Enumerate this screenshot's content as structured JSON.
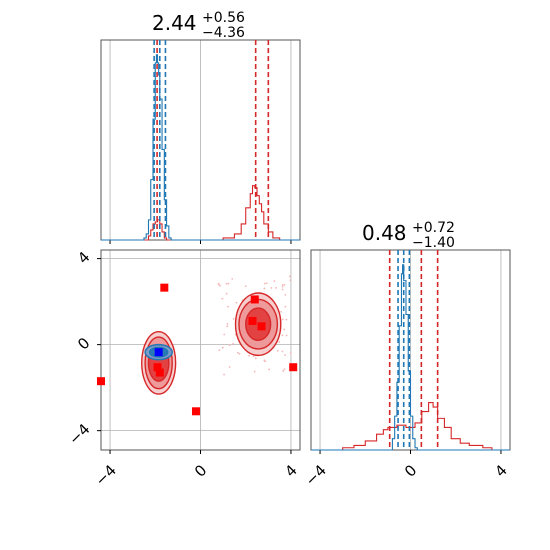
{
  "chart_data": [
    {
      "type": "histogram",
      "panel": "marginal-param-1",
      "title": {
        "value": "2.44",
        "plus": "+0.56",
        "minus": "−4.36"
      },
      "xlim": [
        -4.4,
        4.4
      ],
      "grid": true,
      "series": [
        {
          "color": "#d62728",
          "quantiles": [
            -1.92,
            2.44,
            3.0
          ],
          "bins": [
            [
              -4.4,
              0
            ],
            [
              -2.5,
              0
            ],
            [
              -2.3,
              0.02
            ],
            [
              -2.2,
              0.05
            ],
            [
              -2.1,
              0.08
            ],
            [
              -2.0,
              0.09
            ],
            [
              -1.9,
              0.1
            ],
            [
              -1.8,
              0.08
            ],
            [
              -1.7,
              0.04
            ],
            [
              -1.6,
              0.01
            ],
            [
              -1.5,
              0
            ],
            [
              0.5,
              0
            ],
            [
              1.0,
              0.01
            ],
            [
              1.5,
              0.03
            ],
            [
              1.8,
              0.08
            ],
            [
              2.0,
              0.16
            ],
            [
              2.2,
              0.23
            ],
            [
              2.3,
              0.27
            ],
            [
              2.4,
              0.26
            ],
            [
              2.5,
              0.22
            ],
            [
              2.6,
              0.18
            ],
            [
              2.7,
              0.14
            ],
            [
              2.8,
              0.08
            ],
            [
              3.0,
              0.04
            ],
            [
              3.2,
              0.01
            ],
            [
              3.5,
              0
            ],
            [
              4.4,
              0
            ]
          ]
        },
        {
          "color": "#1f77b4",
          "quantiles": [
            -2.05,
            -1.8,
            -1.55
          ],
          "bins": [
            [
              -4.4,
              0
            ],
            [
              -2.7,
              0
            ],
            [
              -2.5,
              0.01
            ],
            [
              -2.4,
              0.03
            ],
            [
              -2.3,
              0.1
            ],
            [
              -2.2,
              0.3
            ],
            [
              -2.1,
              0.6
            ],
            [
              -2.0,
              0.88
            ],
            [
              -1.95,
              0.92
            ],
            [
              -1.9,
              0.88
            ],
            [
              -1.85,
              0.82
            ],
            [
              -1.8,
              0.7
            ],
            [
              -1.7,
              0.45
            ],
            [
              -1.6,
              0.2
            ],
            [
              -1.5,
              0.07
            ],
            [
              -1.4,
              0.01
            ],
            [
              -1.3,
              0
            ],
            [
              4.4,
              0
            ]
          ]
        }
      ]
    },
    {
      "type": "scatter",
      "panel": "joint-param-1-vs-param-2",
      "xlim": [
        -4.4,
        4.4
      ],
      "ylim": [
        -4.9,
        4.4
      ],
      "grid": true,
      "contours": [
        {
          "color": "#d62728",
          "center": [
            -1.85,
            -0.85
          ],
          "radii": [
            [
              0.75,
              1.45
            ],
            [
              0.6,
              1.2
            ],
            [
              0.45,
              0.85
            ]
          ]
        },
        {
          "color": "#d62728",
          "center": [
            2.55,
            0.95
          ],
          "radii": [
            [
              1.0,
              1.45
            ],
            [
              0.85,
              1.15
            ],
            [
              0.55,
              0.75
            ]
          ]
        },
        {
          "color": "#1f77b4",
          "center": [
            -1.85,
            -0.35
          ],
          "radii": [
            [
              0.6,
              0.35
            ],
            [
              0.4,
              0.22
            ]
          ]
        }
      ],
      "points_red": [
        [
          -1.6,
          2.65
        ],
        [
          -4.4,
          -1.7
        ],
        [
          -0.2,
          -3.1
        ],
        [
          2.4,
          2.1
        ],
        [
          2.3,
          1.1
        ],
        [
          2.7,
          0.85
        ],
        [
          4.1,
          -1.05
        ],
        [
          -1.9,
          -1.05
        ],
        [
          -1.8,
          -1.3
        ]
      ],
      "points_blue": [
        [
          -1.85,
          -0.35
        ]
      ]
    },
    {
      "type": "histogram",
      "panel": "marginal-param-2",
      "title": {
        "value": "0.48",
        "plus": "+0.72",
        "minus": "−1.40"
      },
      "xlim": [
        -4.4,
        4.4
      ],
      "grid": true,
      "series": [
        {
          "color": "#d62728",
          "quantiles": [
            -0.92,
            0.48,
            1.2
          ],
          "bins": [
            [
              -4.4,
              0
            ],
            [
              -3.0,
              0.01
            ],
            [
              -2.5,
              0.02
            ],
            [
              -2.0,
              0.04
            ],
            [
              -1.5,
              0.07
            ],
            [
              -1.2,
              0.09
            ],
            [
              -1.0,
              0.1
            ],
            [
              -0.6,
              0.11
            ],
            [
              -0.2,
              0.1
            ],
            [
              0.2,
              0.12
            ],
            [
              0.5,
              0.17
            ],
            [
              0.8,
              0.21
            ],
            [
              1.0,
              0.19
            ],
            [
              1.2,
              0.14
            ],
            [
              1.5,
              0.1
            ],
            [
              1.8,
              0.05
            ],
            [
              2.2,
              0.03
            ],
            [
              2.6,
              0.02
            ],
            [
              3.2,
              0.01
            ],
            [
              3.6,
              0
            ],
            [
              4.4,
              0
            ]
          ]
        },
        {
          "color": "#1f77b4",
          "quantiles": [
            -0.55,
            -0.3,
            -0.05
          ],
          "bins": [
            [
              -4.4,
              0
            ],
            [
              -0.9,
              0
            ],
            [
              -0.8,
              0.05
            ],
            [
              -0.7,
              0.15
            ],
            [
              -0.6,
              0.3
            ],
            [
              -0.5,
              0.55
            ],
            [
              -0.4,
              0.78
            ],
            [
              -0.35,
              0.82
            ],
            [
              -0.3,
              0.75
            ],
            [
              -0.2,
              0.6
            ],
            [
              -0.1,
              0.35
            ],
            [
              0.0,
              0.15
            ],
            [
              0.1,
              0.05
            ],
            [
              0.2,
              0.01
            ],
            [
              0.3,
              0
            ],
            [
              4.4,
              0
            ]
          ]
        }
      ]
    }
  ],
  "x_ticks": [
    "−4",
    "0",
    "4"
  ],
  "y_ticks": [
    "4",
    "0",
    "−4"
  ],
  "colors": {
    "red": "#d62728",
    "blue": "#1f77b4",
    "grid": "#b0b0b0",
    "marker_red": "#ff0000",
    "marker_blue": "#0000ff"
  }
}
